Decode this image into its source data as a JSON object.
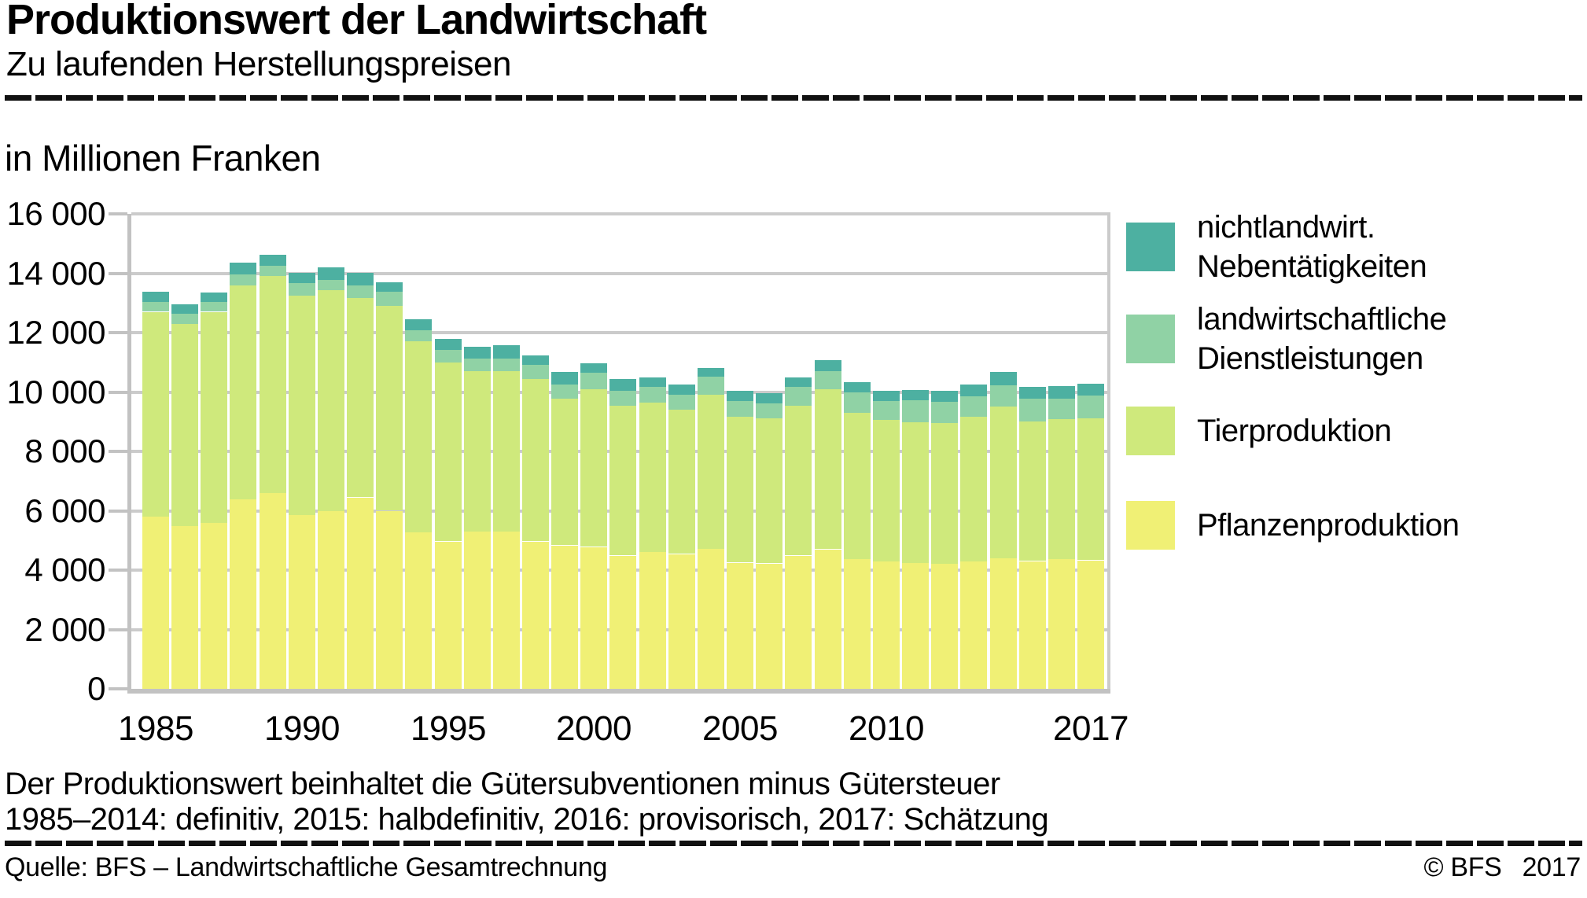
{
  "header": {
    "title": "Produktionswert der Landwirtschaft",
    "subtitle": "Zu laufenden Herstellungspreisen"
  },
  "units_label": "in Millionen Franken",
  "footnotes": {
    "line1": "Der Produktionswert beinhaltet die Gütersubventionen minus Gütersteuer",
    "line2": "1985–2014: definitiv, 2015: halbdefinitiv, 2016: provisorisch, 2017: Schätzung"
  },
  "source": {
    "left": "Quelle: BFS – Landwirtschaftliche Gesamtrechnung",
    "copyright": "© BFS",
    "year": "2017"
  },
  "colors": {
    "neben": "#4db0a1",
    "dienstleistungen": "#90d2a5",
    "tierproduktion": "#cfe97c",
    "pflanzenproduktion": "#f0f075",
    "gridline": "#cbcbcb",
    "axis": "#c2c2c2",
    "text": "#000000"
  },
  "chart_data": {
    "type": "bar",
    "stacked": true,
    "title": "Produktionswert der Landwirtschaft",
    "ylabel": "in Millionen Franken",
    "ylim": [
      0,
      16000
    ],
    "ytick_interval": 2000,
    "ytick_labels": [
      "0",
      "2 000",
      "4 000",
      "6 000",
      "8 000",
      "10 000",
      "12 000",
      "14 000",
      "16 000"
    ],
    "grid": true,
    "legend_position": "right",
    "years": [
      1985,
      1986,
      1987,
      1988,
      1989,
      1990,
      1991,
      1992,
      1993,
      1994,
      1995,
      1996,
      1997,
      1998,
      1999,
      2000,
      2001,
      2002,
      2003,
      2004,
      2005,
      2006,
      2007,
      2008,
      2009,
      2010,
      2011,
      2012,
      2013,
      2014,
      2015,
      2016,
      2017
    ],
    "xticks": [
      {
        "index": 0,
        "label": "1985"
      },
      {
        "index": 5,
        "label": "1990"
      },
      {
        "index": 10,
        "label": "1995"
      },
      {
        "index": 15,
        "label": "2000"
      },
      {
        "index": 20,
        "label": "2005"
      },
      {
        "index": 25,
        "label": "2010"
      },
      {
        "index": 32,
        "label": "2017"
      }
    ],
    "series": [
      {
        "name": "Pflanzenproduktion",
        "color": "#f0f075",
        "values": [
          5800,
          5500,
          5600,
          6400,
          6600,
          5850,
          6000,
          6450,
          6000,
          5280,
          4960,
          5300,
          5300,
          4960,
          4830,
          4780,
          4490,
          4620,
          4540,
          4720,
          4250,
          4220,
          4490,
          4700,
          4360,
          4280,
          4250,
          4220,
          4280,
          4410,
          4300,
          4360,
          4330
        ]
      },
      {
        "name": "Tierproduktion",
        "color": "#cfe97c",
        "values": [
          6900,
          6800,
          7100,
          7200,
          7300,
          7390,
          7440,
          6730,
          6890,
          6440,
          6050,
          5410,
          5410,
          5470,
          4940,
          5330,
          5040,
          5020,
          4860,
          5180,
          4910,
          4880,
          5040,
          5390,
          4940,
          4780,
          4730,
          4730,
          4880,
          5100,
          4700,
          4720,
          4780
        ]
      },
      {
        "name": "landwirtschaftliche Dienstleistungen",
        "color": "#90d2a5",
        "values": [
          330,
          340,
          320,
          370,
          340,
          420,
          340,
          420,
          480,
          370,
          420,
          420,
          420,
          480,
          480,
          550,
          500,
          530,
          500,
          630,
          550,
          530,
          630,
          610,
          690,
          630,
          740,
          710,
          690,
          710,
          770,
          710,
          770
        ]
      },
      {
        "name": "nichtlandwirt. Nebentätigkeiten",
        "color": "#4db0a1",
        "values": [
          350,
          320,
          320,
          400,
          370,
          350,
          420,
          420,
          320,
          370,
          370,
          390,
          450,
          320,
          420,
          320,
          400,
          320,
          340,
          290,
          340,
          340,
          320,
          370,
          340,
          340,
          340,
          370,
          400,
          450,
          400,
          420,
          400
        ]
      }
    ],
    "legend": [
      {
        "lines": [
          "nichtlandwirt.",
          "Nebentätigkeiten"
        ],
        "color": "#4db0a1"
      },
      {
        "lines": [
          "landwirtschaftliche",
          "Dienstleistungen"
        ],
        "color": "#90d2a5"
      },
      {
        "lines": [
          "Tierproduktion"
        ],
        "color": "#cfe97c"
      },
      {
        "lines": [
          "Pflanzenproduktion"
        ],
        "color": "#f0f075"
      }
    ]
  }
}
